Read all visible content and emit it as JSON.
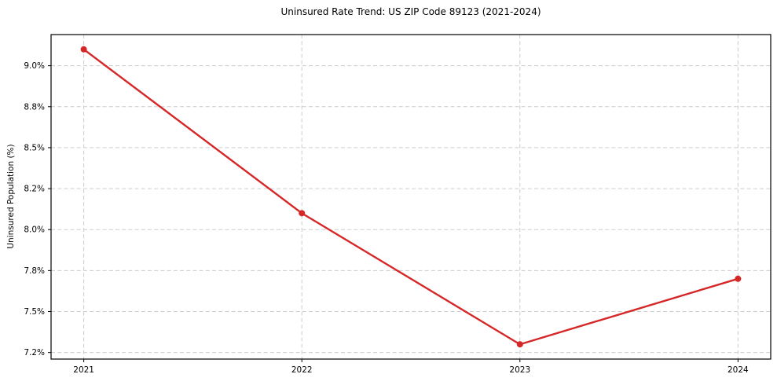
{
  "chart_data": {
    "type": "line",
    "title": "Uninsured Rate Trend: US ZIP Code 89123 (2021-2024)",
    "xlabel": "",
    "ylabel": "Uninsured Population (%)",
    "categories": [
      "2021",
      "2022",
      "2023",
      "2024"
    ],
    "x": [
      2021,
      2022,
      2023,
      2024
    ],
    "values": [
      9.1,
      8.1,
      7.3,
      7.7
    ],
    "xlim": [
      2020.85,
      2024.15
    ],
    "ylim": [
      7.21,
      9.19
    ],
    "y_ticks": [
      {
        "value": 7.25,
        "label": "7.2%"
      },
      {
        "value": 7.5,
        "label": "7.5%"
      },
      {
        "value": 7.75,
        "label": "7.8%"
      },
      {
        "value": 8.0,
        "label": "8.0%"
      },
      {
        "value": 8.25,
        "label": "8.2%"
      },
      {
        "value": 8.5,
        "label": "8.5%"
      },
      {
        "value": 8.75,
        "label": "8.8%"
      },
      {
        "value": 9.0,
        "label": "9.0%"
      }
    ],
    "grid": true,
    "grid_style": "dashed",
    "legend_position": "none",
    "colors": {
      "line": "#d62728",
      "marker": "#d62728",
      "grid": "#cccccc",
      "axis": "#000000",
      "text": "#000000",
      "background": "#ffffff"
    }
  }
}
